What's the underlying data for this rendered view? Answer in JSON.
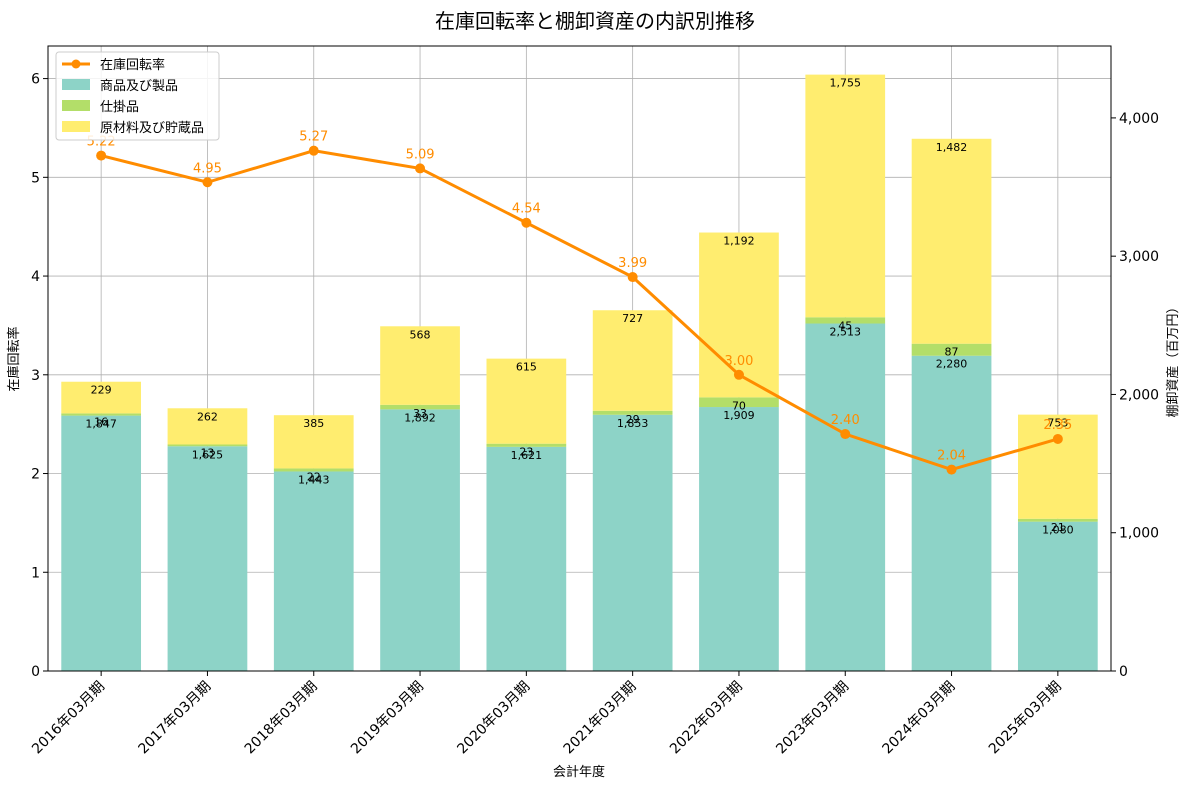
{
  "chart_data": {
    "type": "bar",
    "title": "在庫回転率と棚卸資産の内訳別推移",
    "xlabel": "会計年度",
    "ylabel_left": "在庫回転率",
    "ylabel_right": "棚卸資産（百万円）",
    "categories": [
      "2016年03月期",
      "2017年03月期",
      "2018年03月期",
      "2019年03月期",
      "2020年03月期",
      "2021年03月期",
      "2022年03月期",
      "2023年03月期",
      "2024年03月期",
      "2025年03月期"
    ],
    "ylim_left": [
      0,
      6.33
    ],
    "ylim_right": [
      0,
      4520
    ],
    "yticks_left": [
      0,
      1,
      2,
      3,
      4,
      5,
      6
    ],
    "yticks_right": [
      0,
      1000,
      2000,
      3000,
      4000
    ],
    "yticks_right_labels": [
      "0",
      "1,000",
      "2,000",
      "3,000",
      "4,000"
    ],
    "grid": true,
    "legend_position": "top-left",
    "stacked_series": [
      {
        "name": "商品及び製品",
        "color": "#8dd3c7",
        "values": [
          1847,
          1625,
          1443,
          1892,
          1621,
          1853,
          1909,
          2513,
          2280,
          1080
        ],
        "labels": [
          "1,847",
          "1,625",
          "1,443",
          "1,892",
          "1,621",
          "1,853",
          "1,909",
          "2,513",
          "2,280",
          "1,080"
        ]
      },
      {
        "name": "仕掛品",
        "color": "#b3de69",
        "values": [
          16,
          13,
          22,
          33,
          23,
          29,
          70,
          45,
          87,
          21
        ],
        "labels": [
          "16",
          "13",
          "22",
          "33",
          "23",
          "29",
          "70",
          "45",
          "87",
          "21"
        ]
      },
      {
        "name": "原材料及び貯蔵品",
        "color": "#ffed6f",
        "values": [
          229,
          262,
          385,
          568,
          615,
          727,
          1192,
          1755,
          1482,
          753
        ],
        "labels": [
          "229",
          "262",
          "385",
          "568",
          "615",
          "727",
          "1,192",
          "1,755",
          "1,482",
          "753"
        ]
      }
    ],
    "line_series": {
      "name": "在庫回転率",
      "color": "#ff8c00",
      "values": [
        5.22,
        4.95,
        5.27,
        5.09,
        4.54,
        3.99,
        3.0,
        2.4,
        2.04,
        2.35
      ],
      "labels": [
        "5.22",
        "4.95",
        "5.27",
        "5.09",
        "4.54",
        "3.99",
        "3.00",
        "2.40",
        "2.04",
        "2.35"
      ]
    }
  }
}
